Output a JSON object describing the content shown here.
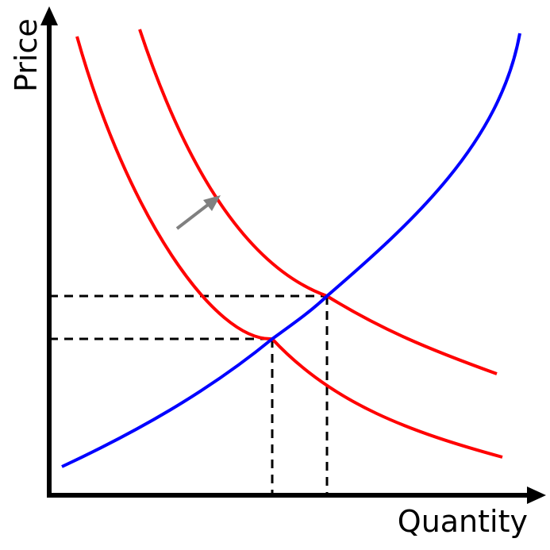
{
  "labels": {
    "y_axis": "Price",
    "x_axis": "Quantity"
  },
  "colors": {
    "axes": "#000000",
    "supply_curve": "#0000ff",
    "demand_curves": "#ff0000",
    "guide_lines": "#000000",
    "shift_arrow": "#808080",
    "background": "#ffffff"
  }
}
